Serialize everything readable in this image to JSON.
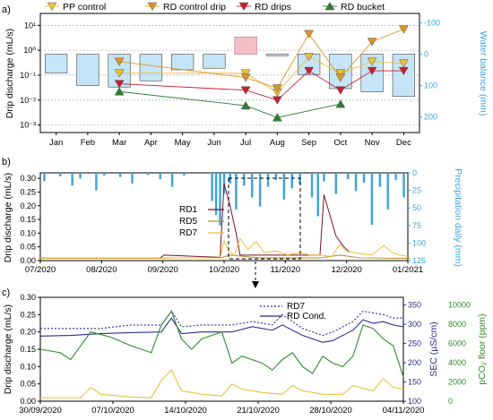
{
  "chart_data": [
    {
      "panel": "a)",
      "type": "line",
      "categories": [
        "Jan",
        "Feb",
        "Mar",
        "Apr",
        "May",
        "Jun",
        "Jul",
        "Aug",
        "Sep",
        "Oct",
        "Nov",
        "Dec"
      ],
      "ylabel": "Drip discharge (mL/s)",
      "ylabel_right": "Water balance (mm)",
      "y_scale": "log",
      "ylim": [
        0.0005,
        30
      ],
      "y_ticks": [
        "10¹",
        "10⁰",
        "10⁻¹",
        "10⁻²",
        "10⁻³"
      ],
      "y_right_ticks": [
        "-100",
        "0",
        "100",
        "200"
      ],
      "y_right_lim": [
        -130,
        250
      ],
      "legend": [
        "PP control",
        "RD control drip",
        "RD drips",
        "RD bucket"
      ],
      "series": [
        {
          "name": "PP control",
          "marker": "triangle-down",
          "color": "#E8C13B",
          "values": [
            null,
            null,
            0.12,
            null,
            null,
            null,
            0.12,
            0.02,
            0.55,
            0.12,
            0.35,
            0.3
          ]
        },
        {
          "name": "RD control drip",
          "marker": "triangle-down",
          "color": "#D9962A",
          "values": [
            null,
            null,
            0.35,
            null,
            null,
            null,
            0.08,
            0.03,
            4.5,
            0.08,
            2.2,
            7
          ]
        },
        {
          "name": "RD drips",
          "marker": "triangle-down",
          "color": "#C81E2B",
          "values": [
            null,
            null,
            0.045,
            null,
            null,
            null,
            0.025,
            0.01,
            0.15,
            0.025,
            0.15,
            0.15
          ]
        },
        {
          "name": "RD bucket",
          "marker": "triangle-up",
          "color": "#2E7D32",
          "values": [
            null,
            null,
            0.022,
            null,
            null,
            null,
            0.006,
            0.002,
            null,
            0.007,
            null,
            null
          ]
        }
      ],
      "water_balance_mm": [
        60,
        100,
        105,
        85,
        50,
        45,
        -55,
        5,
        65,
        110,
        120,
        135
      ]
    },
    {
      "panel": "b)",
      "type": "line",
      "ylabel": "Drip discharge (mL/s)",
      "ylabel_right": "Precipitation daily (mm)",
      "x_ticks": [
        "07/2020",
        "08/2020",
        "09/2020",
        "10/2020",
        "11/2020",
        "12/2020",
        "01/2021"
      ],
      "y_ticks": [
        "0.00",
        "0.05",
        "0.10",
        "0.15",
        "0.20",
        "0.25",
        "0.30"
      ],
      "y_right_ticks": [
        "0",
        "25",
        "50",
        "75",
        "100",
        "125"
      ],
      "ylim": [
        0,
        0.32
      ],
      "legend": [
        "RD1",
        "RD5",
        "RD7"
      ],
      "series": [
        {
          "name": "RD1",
          "color": "#7A1420",
          "x": [
            0,
            60,
            62,
            90,
            92,
            95,
            98,
            100,
            140,
            142,
            146,
            148,
            152,
            155
          ],
          "y": [
            0.01,
            0.01,
            0.02,
            0.012,
            0.28,
            0.2,
            0.1,
            0.02,
            0.02,
            0.24,
            0.14,
            0.09,
            0.05,
            0.03
          ]
        },
        {
          "name": "RD5",
          "color": "#B38A2E",
          "x": [
            0,
            60,
            70,
            90,
            95,
            110,
            140,
            150,
            160,
            180,
            185
          ],
          "y": [
            0.008,
            0.008,
            0.01,
            0.01,
            0.02,
            0.01,
            0.01,
            0.02,
            0.01,
            0.008,
            0.008
          ]
        },
        {
          "name": "RD7",
          "color": "#E8C13B",
          "x": [
            0,
            90,
            92,
            95,
            97,
            100,
            104,
            108,
            112,
            118,
            124,
            130,
            135,
            140,
            146,
            150,
            153,
            160,
            166,
            172,
            176,
            180,
            184
          ],
          "y": [
            0.01,
            0.01,
            0.07,
            0.03,
            0.02,
            0.08,
            0.04,
            0.07,
            0.03,
            0.035,
            0.02,
            0.03,
            0.02,
            0.02,
            0.015,
            0.06,
            0.035,
            0.025,
            0.02,
            0.055,
            0.03,
            0.02,
            0.015
          ]
        }
      ]
    },
    {
      "panel": "c)",
      "type": "line",
      "ylabel": "Drip discharge (mL/s)",
      "ylabel_right": "SEC (µS/cm)",
      "ylabel_right2": "pCO₂ floor (ppm)",
      "x_ticks": [
        "30/09/2020",
        "07/10/2020",
        "14/10/2020",
        "21/10/2020",
        "28/10/2020",
        "04/11/2020"
      ],
      "y_ticks": [
        "0.00",
        "0.05",
        "0.10",
        "0.15",
        "0.20",
        "0.25",
        "0.30"
      ],
      "y_right_ticks": [
        "100",
        "150",
        "200",
        "250",
        "300",
        "350"
      ],
      "y_right2_ticks": [
        "0",
        "2000",
        "4000",
        "6000",
        "8000",
        "10000"
      ],
      "legend": [
        "RD7",
        "RD Cond."
      ],
      "series": [
        {
          "name": "RD7",
          "style": "dotted",
          "color": "#2A2F8C",
          "x": [
            0,
            3,
            6,
            9,
            12,
            13,
            14,
            16,
            19,
            21,
            23,
            24,
            26,
            28,
            29,
            31,
            32,
            33,
            34,
            35,
            36
          ],
          "y": [
            0.21,
            0.21,
            0.21,
            0.22,
            0.22,
            0.26,
            0.215,
            0.22,
            0.22,
            0.23,
            0.22,
            0.25,
            0.21,
            0.19,
            0.2,
            0.23,
            0.26,
            0.255,
            0.25,
            0.24,
            0.24
          ]
        },
        {
          "name": "RD Cond.",
          "color": "#2A2F8C",
          "x": [
            0,
            3,
            6,
            9,
            12,
            13,
            14,
            16,
            19,
            21,
            23,
            24,
            26,
            28,
            29,
            31,
            32,
            33,
            34,
            35,
            36
          ],
          "y": [
            0.188,
            0.19,
            0.195,
            0.198,
            0.2,
            0.24,
            0.195,
            0.2,
            0.2,
            0.215,
            0.205,
            0.22,
            0.19,
            0.17,
            0.175,
            0.205,
            0.235,
            0.225,
            0.23,
            0.22,
            0.215
          ]
        },
        {
          "name": "pCO2",
          "color": "#2E8B2E",
          "x": [
            0,
            2,
            3,
            5,
            7,
            9,
            11,
            12,
            13,
            14,
            15,
            16,
            18,
            19,
            20,
            22,
            23,
            24,
            25,
            26,
            27,
            28,
            29,
            30,
            31,
            32,
            33,
            34,
            35,
            36
          ],
          "y": [
            0.15,
            0.14,
            0.12,
            0.2,
            0.185,
            0.16,
            0.14,
            0.22,
            0.26,
            0.18,
            0.15,
            0.18,
            0.2,
            0.11,
            0.13,
            0.11,
            0.09,
            0.12,
            0.14,
            0.1,
            0.08,
            0.13,
            0.11,
            0.1,
            0.13,
            0.22,
            0.21,
            0.18,
            0.16,
            0.07
          ]
        },
        {
          "name": "RD7 discharge",
          "color": "#E8C13B",
          "x": [
            0,
            4,
            5,
            6,
            9,
            11,
            12,
            13,
            14,
            16,
            18,
            19,
            20,
            22,
            24,
            25,
            26,
            28,
            30,
            31,
            33,
            34,
            35,
            36
          ],
          "y": [
            0.01,
            0.01,
            0.04,
            0.02,
            0.012,
            0.01,
            0.06,
            0.09,
            0.03,
            0.02,
            0.015,
            0.05,
            0.035,
            0.025,
            0.02,
            0.045,
            0.03,
            0.02,
            0.02,
            0.045,
            0.03,
            0.065,
            0.04,
            0.035
          ]
        }
      ]
    }
  ]
}
